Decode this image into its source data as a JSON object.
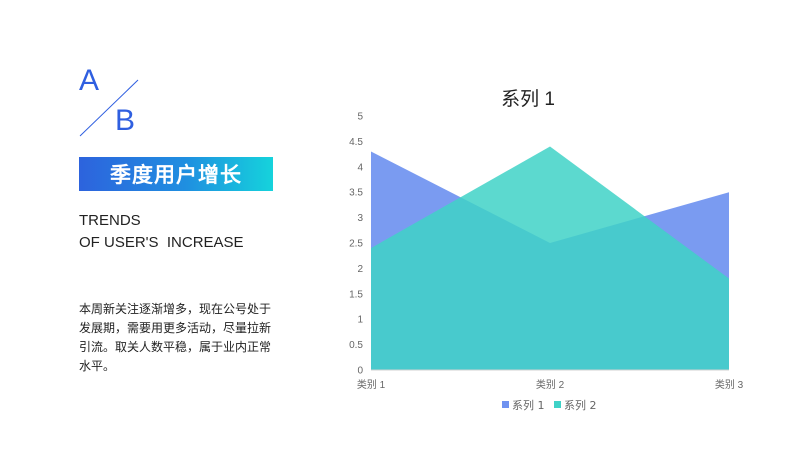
{
  "logo": {
    "letter_a": "A",
    "letter_b": "B"
  },
  "banner": {
    "title": "季度用户增长"
  },
  "subtitle": {
    "line1": "TRENDS",
    "line2": "OF USER'S  INCREASE"
  },
  "description": "本周新关注逐渐增多，现在公号处于发展期，需要用更多活动，尽量拉新引流。取关人数平稳，属于业内正常水平。",
  "colors": {
    "accent": "#2f5fe0",
    "series1": "#6f92f0",
    "series2": "#3fd2c7"
  },
  "chart_data": {
    "type": "area",
    "title": "系列 1",
    "categories": [
      "类别 1",
      "类别 2",
      "类别 3"
    ],
    "series": [
      {
        "name": "系列 1",
        "values": [
          4.3,
          2.5,
          3.5
        ]
      },
      {
        "name": "系列 2",
        "values": [
          2.4,
          4.4,
          1.8
        ]
      }
    ],
    "ylim": [
      0,
      5
    ],
    "yticks": [
      "0",
      "0.5",
      "1",
      "1.5",
      "2",
      "2.5",
      "3",
      "3.5",
      "4",
      "4.5",
      "5"
    ],
    "grid": false,
    "legend": "bottom"
  }
}
